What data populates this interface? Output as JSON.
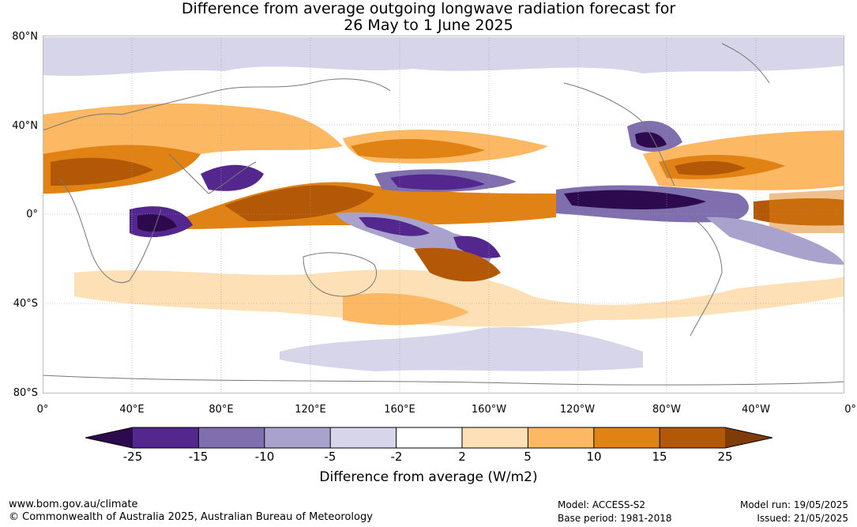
{
  "title_line1": "Difference from average outgoing longwave radiation forecast for",
  "title_line2": "26 May to 1 June 2025",
  "lat_labels": [
    "80°N",
    "40°N",
    "0°",
    "40°S",
    "80°S"
  ],
  "lon_labels": [
    "0°",
    "40°E",
    "80°E",
    "120°E",
    "160°E",
    "160°W",
    "120°W",
    "80°W",
    "40°W",
    "0°"
  ],
  "colorbar": {
    "title": "Difference from average (W/m2)",
    "ticks": [
      "-25",
      "-15",
      "-10",
      "-5",
      "-2",
      "2",
      "5",
      "10",
      "15",
      "25"
    ],
    "colors": [
      "#2d0a4e",
      "#54278f",
      "#7f6fae",
      "#a9a2cd",
      "#d6d5e9",
      "#ffffff",
      "#fee0b6",
      "#fdb863",
      "#e08214",
      "#b35806",
      "#7f3b08"
    ]
  },
  "footer": {
    "website": "www.bom.gov.au/climate",
    "copyright": "© Commonwealth of Australia 2025, Australian Bureau of Meteorology",
    "model": "Model: ACCESS-S2",
    "base_period": "Base period: 1981-2018",
    "model_run": "Model run: 19/05/2025",
    "issued": "Issued: 21/05/2025"
  }
}
